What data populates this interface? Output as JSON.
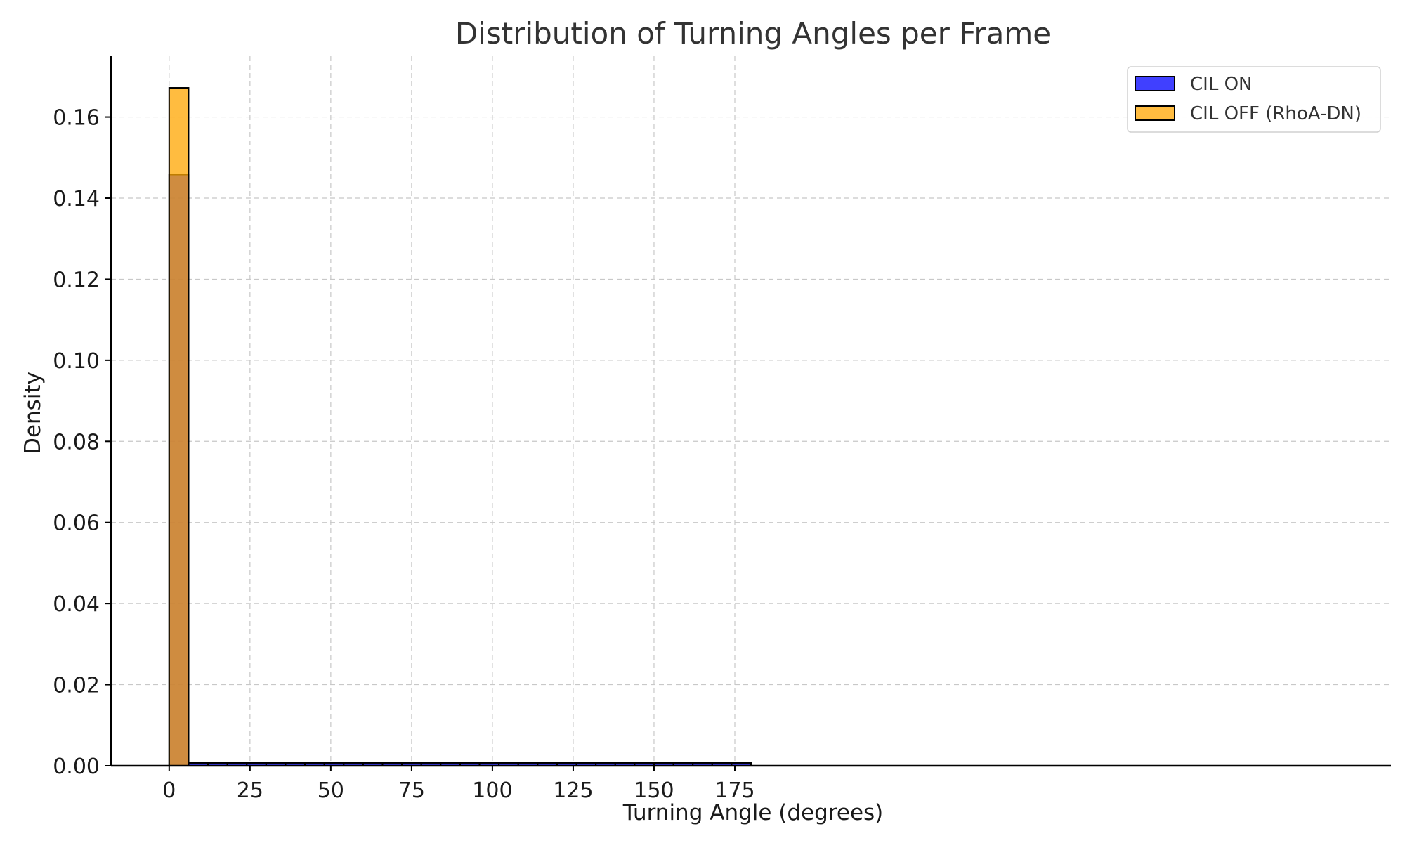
{
  "chart_data": {
    "type": "bar",
    "title": "Distribution of Turning Angles per Frame",
    "xlabel": "Turning Angle (degrees)",
    "ylabel": "Density",
    "xlim": [
      -18,
      378
    ],
    "ylim": [
      0,
      0.175
    ],
    "xticks": [
      0,
      25,
      50,
      75,
      100,
      125,
      150,
      175
    ],
    "xtick_labels": [
      "0",
      "25",
      "50",
      "75",
      "100",
      "125",
      "150",
      "175"
    ],
    "yticks": [
      0,
      0.02,
      0.04,
      0.06,
      0.08,
      0.1,
      0.12,
      0.14,
      0.16
    ],
    "ytick_labels": [
      "0.00",
      "0.02",
      "0.04",
      "0.06",
      "0.08",
      "0.10",
      "0.12",
      "0.14",
      "0.16"
    ],
    "grid": true,
    "legend_position": "top-right",
    "series": [
      {
        "name": "CIL ON",
        "color": "#0000ff",
        "opacity": 0.75,
        "bins": [
          [
            0,
            6
          ],
          [
            6,
            12
          ],
          [
            12,
            18
          ],
          [
            18,
            24
          ],
          [
            24,
            30
          ],
          [
            30,
            36
          ],
          [
            36,
            42
          ],
          [
            42,
            48
          ],
          [
            48,
            54
          ],
          [
            54,
            60
          ],
          [
            60,
            66
          ],
          [
            66,
            72
          ],
          [
            72,
            78
          ],
          [
            78,
            84
          ],
          [
            84,
            90
          ],
          [
            90,
            96
          ],
          [
            96,
            102
          ],
          [
            102,
            108
          ],
          [
            108,
            114
          ],
          [
            114,
            120
          ],
          [
            120,
            126
          ],
          [
            126,
            132
          ],
          [
            132,
            138
          ],
          [
            138,
            144
          ],
          [
            144,
            150
          ],
          [
            150,
            156
          ],
          [
            156,
            162
          ],
          [
            162,
            168
          ],
          [
            168,
            174
          ],
          [
            174,
            180
          ]
        ],
        "values": [
          0.1458,
          0.0007,
          0.0007,
          0.0007,
          0.0007,
          0.0007,
          0.0007,
          0.0007,
          0.0007,
          0.0007,
          0.0007,
          0.0007,
          0.0007,
          0.0007,
          0.0007,
          0.0007,
          0.0007,
          0.0007,
          0.0007,
          0.0007,
          0.0007,
          0.0007,
          0.0007,
          0.0007,
          0.0007,
          0.0007,
          0.0007,
          0.0007,
          0.0007,
          0.0007
        ]
      },
      {
        "name": "CIL OFF (RhoA-DN)",
        "color": "#ffa500",
        "opacity": 0.75,
        "bins": [
          [
            0,
            6
          ]
        ],
        "values": [
          0.1672
        ]
      }
    ]
  }
}
